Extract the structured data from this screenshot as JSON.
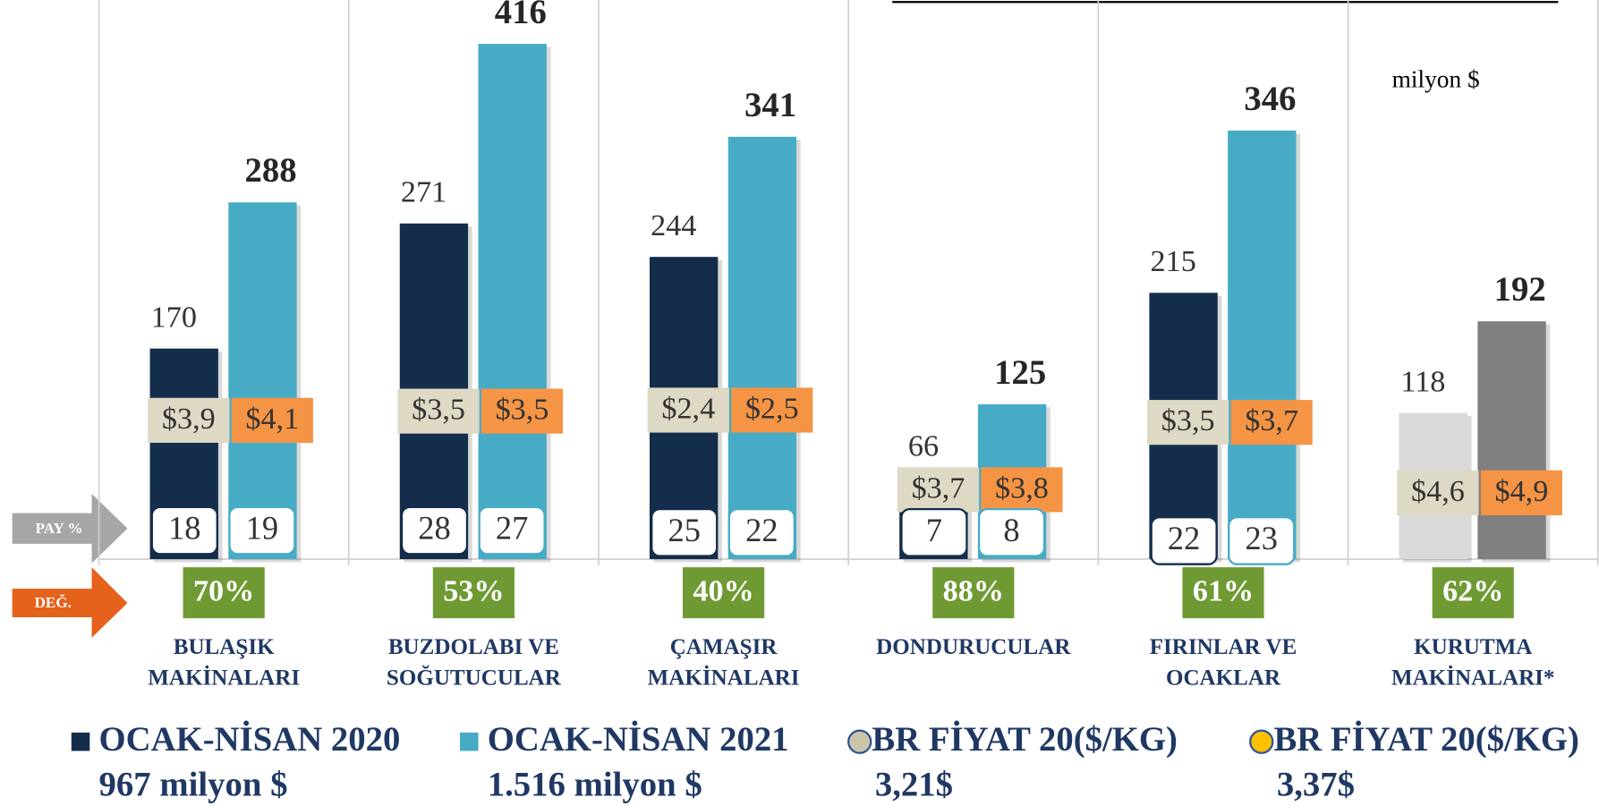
{
  "chart_data": {
    "type": "bar",
    "annotation": "milyon $",
    "categories": [
      [
        "BULAŞIK",
        "MAKİNALARI"
      ],
      [
        "BUZDOLABI VE",
        "SOĞUTUCULAR"
      ],
      [
        "ÇAMAŞIR",
        "MAKİNALARI"
      ],
      [
        "DONDURUCULAR"
      ],
      [
        "FIRINLAR VE",
        "OCAKLAR"
      ],
      [
        "KURUTMA",
        "MAKİNALARI*"
      ]
    ],
    "ylim": [
      0,
      416
    ],
    "series": [
      {
        "name": "OCAK-NİSAN 2020",
        "subtitle": "967 milyon $",
        "color": "#132d4b",
        "colors": [
          "#132d4b",
          "#132d4b",
          "#132d4b",
          "#132d4b",
          "#132d4b",
          "#d9d9d9"
        ],
        "values": [
          170,
          271,
          244,
          66,
          215,
          118
        ]
      },
      {
        "name": "OCAK-NİSAN 2021",
        "subtitle": "1.516 milyon $",
        "color": "#47abc6",
        "colors": [
          "#47abc6",
          "#47abc6",
          "#47abc6",
          "#47abc6",
          "#47abc6",
          "#7f7f7f"
        ],
        "values": [
          288,
          416,
          341,
          125,
          346,
          192
        ]
      }
    ],
    "prices": [
      {
        "name": "BR FİYAT 20($/KG)",
        "subtitle": "3,21$",
        "color": "#ddd9c4",
        "marker_color": "#ccc6a8",
        "values": [
          3.9,
          3.5,
          2.4,
          3.7,
          3.5,
          4.6
        ],
        "value_labels": [
          "$3,9",
          "$3,5",
          "$2,4",
          "$3,7",
          "$3,5",
          "$4,6"
        ]
      },
      {
        "name": "BR FİYAT 20($/KG)",
        "subtitle": "3,37$",
        "color": "#f59445",
        "marker_color": "#ffc000",
        "values": [
          4.1,
          3.5,
          2.5,
          3.8,
          3.7,
          4.9
        ],
        "value_labels": [
          "$4,1",
          "$3,5",
          "$2,5",
          "$3,8",
          "$3,7",
          "$4,9"
        ]
      }
    ],
    "share_label": "PAY %",
    "shares": [
      [
        18,
        28,
        25,
        7,
        22
      ],
      [
        19,
        27,
        22,
        8,
        23
      ]
    ],
    "change_label": "DEĞ.",
    "change": [
      70,
      53,
      40,
      88,
      61,
      62
    ],
    "change_labels": [
      "70%",
      "53%",
      "40%",
      "88%",
      "61%",
      "62%"
    ],
    "change_color": "#6f9a33"
  }
}
